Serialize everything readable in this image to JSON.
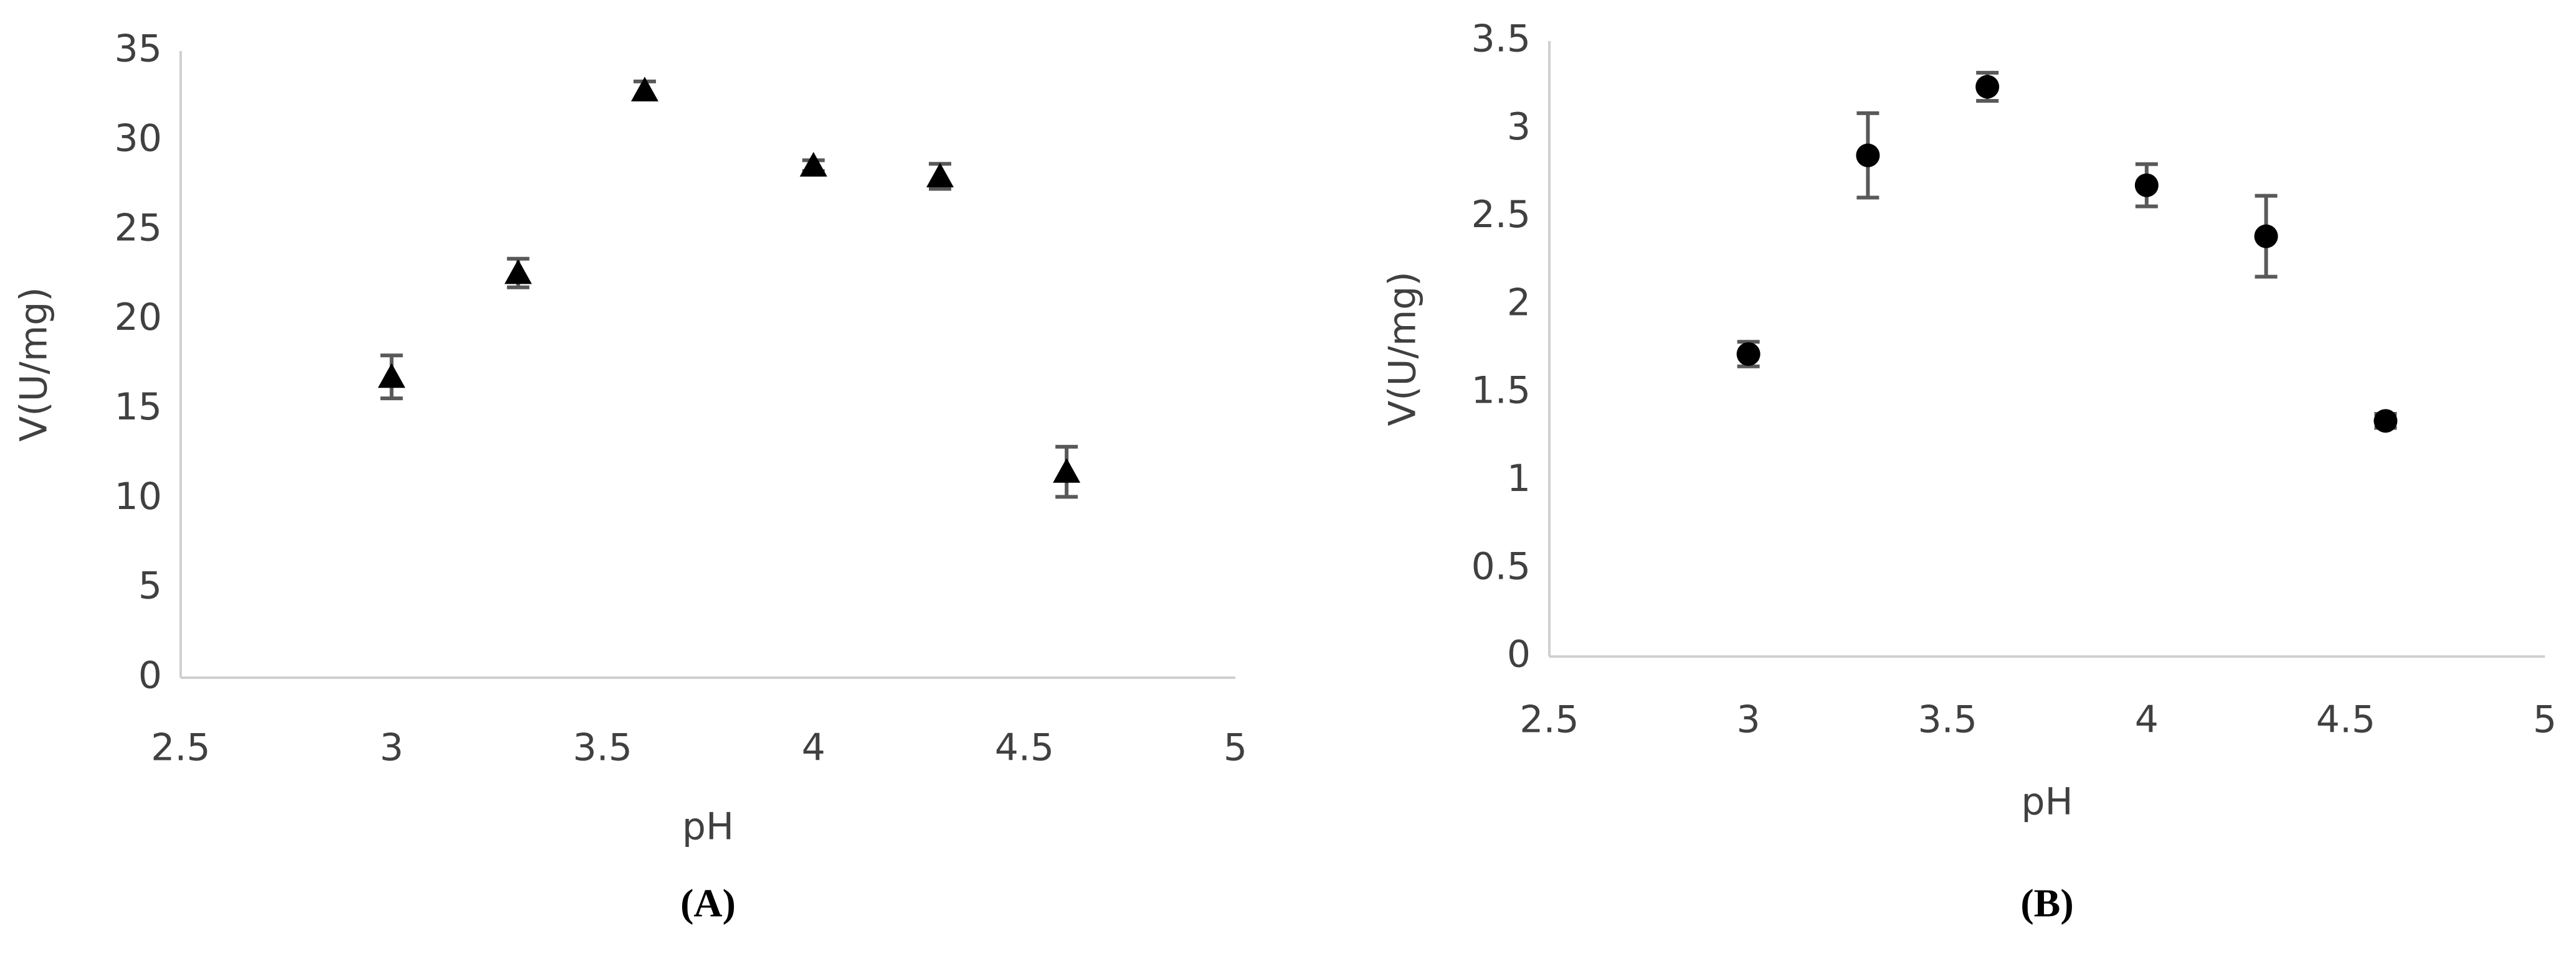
{
  "chart_data": [
    {
      "type": "scatter",
      "panel_label": "(A)",
      "x_label": "pH",
      "y_label": "V(U/mg)",
      "x": [
        3,
        3.3,
        3.6,
        4,
        4.3,
        4.6
      ],
      "values": [
        16.8,
        22.6,
        32.8,
        28.6,
        28,
        11.5
      ],
      "errors": [
        1.2,
        0.8,
        0.5,
        0.3,
        0.7,
        1.4
      ],
      "marker": "triangle",
      "color": "#000000",
      "error_color": "#595959",
      "xlim": [
        2.5,
        5
      ],
      "xticks": [
        2.5,
        3,
        3.5,
        4,
        4.5,
        5
      ],
      "ylim": [
        0,
        35
      ],
      "yticks": [
        0,
        5,
        10,
        15,
        20,
        25,
        30,
        35
      ],
      "grid": false
    },
    {
      "type": "scatter",
      "panel_label": "(B)",
      "x_label": "pH",
      "y_label": "V(U/mg)",
      "x": [
        3,
        3.3,
        3.6,
        4,
        4.3,
        4.6
      ],
      "values": [
        1.72,
        2.85,
        3.24,
        2.68,
        2.39,
        1.34
      ],
      "errors": [
        0.07,
        0.24,
        0.08,
        0.12,
        0.23,
        0.04
      ],
      "marker": "circle",
      "color": "#000000",
      "error_color": "#595959",
      "xlim": [
        2.5,
        5
      ],
      "xticks": [
        2.5,
        3,
        3.5,
        4,
        4.5,
        5
      ],
      "ylim": [
        0,
        3.5
      ],
      "yticks": [
        0,
        0.5,
        1,
        1.5,
        2,
        2.5,
        3,
        3.5
      ],
      "grid": false
    }
  ]
}
